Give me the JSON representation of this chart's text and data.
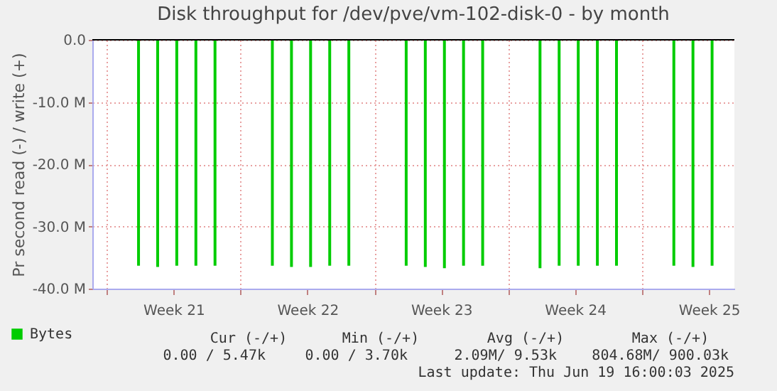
{
  "chart_data": {
    "type": "bar",
    "title": "Disk throughput for /dev/pve/vm-102-disk-0 - by month",
    "ylabel": "Pr second read (-) / write (+)",
    "series": [
      {
        "name": "Bytes",
        "color": "#00cc00",
        "x": [
          "2025-05-20T16:00",
          "2025-05-21T16:00",
          "2025-05-22T16:00",
          "2025-05-23T16:00",
          "2025-05-24T16:00",
          "2025-05-27T16:00",
          "2025-05-28T16:00",
          "2025-05-29T16:00",
          "2025-05-30T16:00",
          "2025-05-31T16:00",
          "2025-06-03T16:00",
          "2025-06-04T16:00",
          "2025-06-05T16:00",
          "2025-06-06T16:00",
          "2025-06-07T16:00",
          "2025-06-10T16:00",
          "2025-06-11T16:00",
          "2025-06-12T16:00",
          "2025-06-13T16:00",
          "2025-06-14T16:00",
          "2025-06-17T16:00",
          "2025-06-18T16:00",
          "2025-06-19T16:00"
        ],
        "values": [
          -36300000,
          -36500000,
          -36300000,
          -36300000,
          -36300000,
          -36300000,
          -36500000,
          -36500000,
          -36300000,
          -36300000,
          -36300000,
          -36500000,
          -36700000,
          -36300000,
          -36300000,
          -36700000,
          -36300000,
          -36300000,
          -36300000,
          -36300000,
          -36300000,
          -36500000,
          -36300000
        ]
      }
    ],
    "xlim": [
      "2025-05-18T06:00",
      "2025-06-20T20:00"
    ],
    "xticks": [
      {
        "value": "2025-05-19T00:00",
        "label": null
      },
      {
        "value": "2025-05-22T12:00",
        "label": "Week 21"
      },
      {
        "value": "2025-05-26T00:00",
        "label": null
      },
      {
        "value": "2025-05-29T12:00",
        "label": "Week 22"
      },
      {
        "value": "2025-06-02T00:00",
        "label": null
      },
      {
        "value": "2025-06-05T12:00",
        "label": "Week 23"
      },
      {
        "value": "2025-06-09T00:00",
        "label": null
      },
      {
        "value": "2025-06-12T12:00",
        "label": "Week 24"
      },
      {
        "value": "2025-06-16T00:00",
        "label": null
      },
      {
        "value": "2025-06-19T12:00",
        "label": "Week 25"
      }
    ],
    "ylim": [
      -40000000,
      0
    ],
    "yticks": [
      {
        "value": -40000000,
        "label": "-40.0 M"
      },
      {
        "value": -30000000,
        "label": "-30.0 M"
      },
      {
        "value": -20000000,
        "label": "-20.0 M"
      },
      {
        "value": -10000000,
        "label": "-10.0 M"
      },
      {
        "value": 0,
        "label": "0.0"
      }
    ],
    "ref_lines": [
      {
        "axis": "y",
        "value": 0,
        "color": "#000000"
      }
    ],
    "grid": true,
    "legend": "bottom left",
    "annotations": [
      "Cur (-/+)",
      "Min (-/+)",
      "Avg (-/+)",
      "Max (-/+)",
      "0.00 /   5.47k",
      "0.00 /   3.70k",
      "2.09M/   9.53k",
      "804.68M/ 900.03k",
      "Last update: Thu Jun 19 16:00:03 2025"
    ]
  }
}
